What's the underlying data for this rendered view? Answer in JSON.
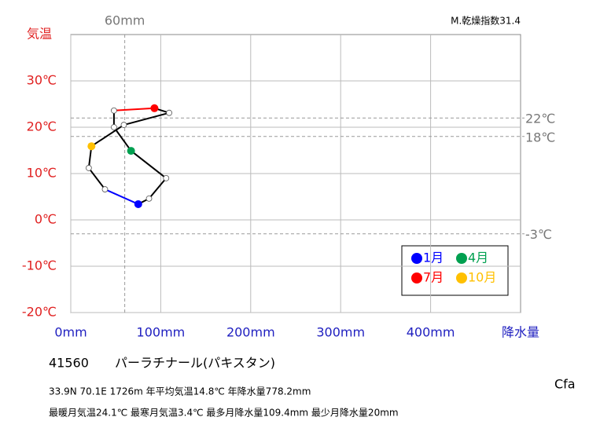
{
  "chart_data": {
    "type": "climograph",
    "y_title": "気温",
    "x_title": "降水量",
    "x": [
      75,
      87,
      106,
      67,
      48,
      48,
      93,
      109.4,
      59,
      23,
      20,
      38
    ],
    "values": [
      3.4,
      4.6,
      9.0,
      14.9,
      20.0,
      23.6,
      24.1,
      23.1,
      20.5,
      15.9,
      11.2,
      6.6
    ],
    "point_colors": [
      "#0000ff",
      "#ffffff",
      "#ffffff",
      "#00a050",
      "#ffffff",
      "#ffffff",
      "#ff0000",
      "#ffffff",
      "#ffffff",
      "#ffc000",
      "#ffffff",
      "#ffffff"
    ],
    "segment_colors": [
      "#0000ff",
      "#000000",
      "#000000",
      "#000000",
      "#000000",
      "#000000",
      "#ff0000",
      "#000000",
      "#000000",
      "#000000",
      "#000000",
      "#000000"
    ],
    "xlim": [
      0,
      500
    ],
    "ylim": [
      -20,
      40
    ],
    "xticks": [
      {
        "value": 0,
        "label": "0mm"
      },
      {
        "value": 100,
        "label": "100mm"
      },
      {
        "value": 200,
        "label": "200mm"
      },
      {
        "value": 300,
        "label": "300mm"
      },
      {
        "value": 400,
        "label": "400mm"
      }
    ],
    "yticks": [
      {
        "value": -20,
        "label": "-20℃"
      },
      {
        "value": -10,
        "label": "-10℃"
      },
      {
        "value": 0,
        "label": "0℃"
      },
      {
        "value": 10,
        "label": "10℃"
      },
      {
        "value": 20,
        "label": "20℃"
      },
      {
        "value": 30,
        "label": "30℃"
      }
    ],
    "grid": true,
    "x_ref": {
      "value": 60,
      "label": "60mm"
    },
    "y_refs": [
      {
        "value": 22,
        "label": "22℃"
      },
      {
        "value": 18,
        "label": "18℃"
      },
      {
        "value": -3,
        "label": "-3℃"
      }
    ],
    "aridity_index": "M.乾燥指数31.4",
    "legend": [
      {
        "label": "1月",
        "color": "#0000ff"
      },
      {
        "label": "4月",
        "color": "#00a050"
      },
      {
        "label": "7月",
        "color": "#ff0000"
      },
      {
        "label": "10月",
        "color": "#ffc000"
      }
    ],
    "station_id": "41560",
    "station_name": "パーラチナール(パキスタン)",
    "climate_class": "Cfa",
    "info_lines": [
      "33.9N  70.1E 1726m  年平均気温14.8℃ 年降水量778.2mm",
      "最暖月気温24.1℃ 最寒月気温3.4℃ 最多月降水量109.4mm 最少月降水量20mm"
    ]
  }
}
